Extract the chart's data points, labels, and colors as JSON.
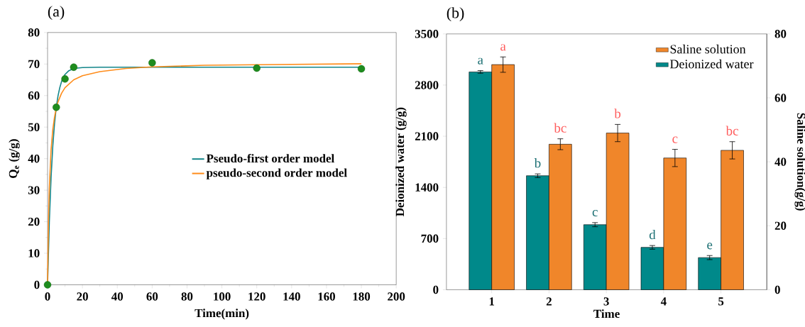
{
  "chart_data": [
    {
      "type": "line",
      "title": "(a)",
      "xlabel": "Time(min)",
      "ylabel": "Q$_{e}$ (g/g)",
      "xlim": [
        0,
        200
      ],
      "ylim": [
        0,
        80
      ],
      "xticks": [
        0,
        20,
        40,
        60,
        80,
        100,
        120,
        140,
        160,
        180,
        200
      ],
      "yticks": [
        0,
        10,
        20,
        30,
        40,
        50,
        60,
        70,
        80
      ],
      "legend": "right",
      "series": [
        {
          "type": "scatter",
          "marker": "circle",
          "color": "#1e8c1e",
          "x": [
            0,
            5,
            10,
            15,
            60,
            120,
            180
          ],
          "values": [
            0,
            56.3,
            65.3,
            69.0,
            70.4,
            68.7,
            68.5
          ]
        },
        {
          "name": "Pseudo-first order model",
          "color": "#13868a",
          "x": [
            0,
            1,
            2,
            3,
            4,
            5,
            6,
            7,
            8,
            9,
            10,
            12,
            15,
            20,
            30,
            60,
            120,
            180
          ],
          "values": [
            0,
            19.8,
            33.9,
            44.0,
            51.2,
            56.3,
            59.9,
            62.5,
            64.4,
            65.7,
            66.7,
            67.8,
            68.6,
            68.9,
            69.0,
            69.0,
            69.0,
            69.0
          ]
        },
        {
          "name": "pseudo-second order model",
          "color": "#ff8c1a",
          "x": [
            0,
            0.5,
            1,
            2,
            3,
            4,
            5,
            6,
            8,
            10,
            15,
            20,
            30,
            45,
            60,
            90,
            120,
            180
          ],
          "values": [
            0,
            19.6,
            30.6,
            42.7,
            49.2,
            53.2,
            56.0,
            58.0,
            60.7,
            62.5,
            65.0,
            66.3,
            67.6,
            68.6,
            69.1,
            69.6,
            69.8,
            70.1
          ]
        }
      ]
    },
    {
      "type": "bar",
      "title": "(b)",
      "categories": [
        "1",
        "2",
        "3",
        "4",
        "5"
      ],
      "xlabel": "Time",
      "ylabel": "Deionized water (g/g)",
      "y2label": "Saline solution(g/g)",
      "ylim": [
        0,
        3500
      ],
      "yticks": [
        0,
        700,
        1400,
        2100,
        2800,
        3500
      ],
      "y2lim": [
        0,
        80
      ],
      "y2ticks": [
        0,
        20,
        40,
        60,
        80
      ],
      "legend": "top right",
      "series": [
        {
          "name": "Deionized water",
          "color": "#00898a",
          "values": [
            2980,
            1560,
            890,
            580,
            440
          ],
          "errors": [
            18,
            25,
            28,
            25,
            28
          ],
          "value_labels": [
            "a",
            "b",
            "c",
            "d",
            "e"
          ]
        },
        {
          "name": "Saline solution",
          "color": "#f0862a",
          "axis": "y2",
          "values": [
            70.4,
            45.5,
            49.0,
            41.2,
            43.6
          ],
          "errors": [
            2.4,
            1.7,
            2.7,
            2.7,
            2.7
          ],
          "value_labels": [
            "a",
            "bc",
            "b",
            "c",
            "bc"
          ]
        }
      ]
    }
  ]
}
